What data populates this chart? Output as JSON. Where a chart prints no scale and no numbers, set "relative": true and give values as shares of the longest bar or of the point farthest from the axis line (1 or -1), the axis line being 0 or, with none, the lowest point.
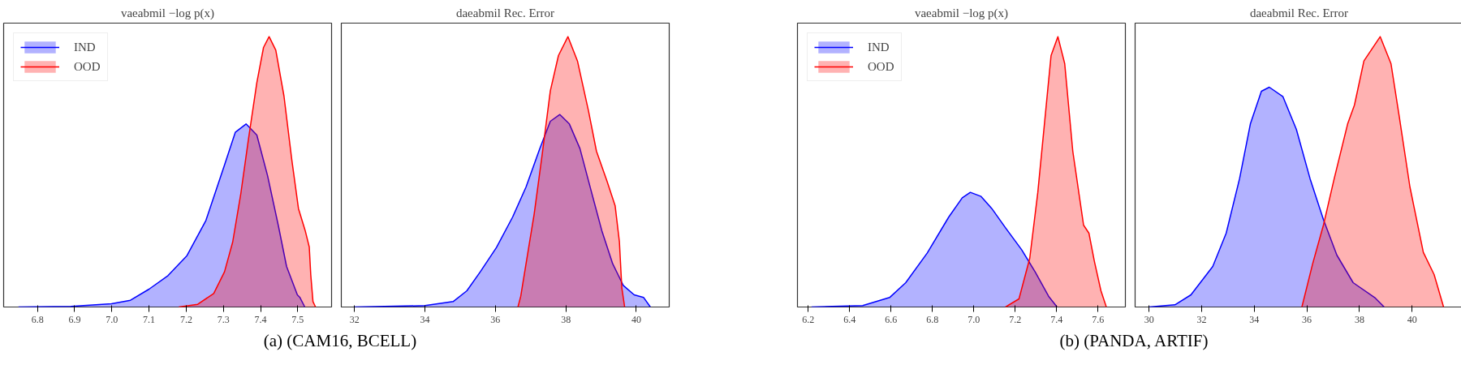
{
  "chart_data": [
    {
      "type": "area",
      "title": "vaeabmil −log p(x)",
      "relative": true,
      "legend": "top left",
      "grid": false,
      "tick_labels": "x",
      "annotations": [
        "(a) (CAM16, BCELL)"
      ],
      "xlim": [
        6.709,
        7.591
      ],
      "xticks": [
        6.8,
        6.9,
        {
          "value": 7.0,
          "label": "7.0"
        },
        7.1,
        7.2,
        7.3,
        7.4,
        7.5
      ],
      "series": [
        {
          "name": "IND",
          "color": "#0000ff",
          "x": [
            6.749,
            6.89,
            6.999,
            7.05,
            7.1,
            7.151,
            7.202,
            7.253,
            7.303,
            7.332,
            7.361,
            7.39,
            7.419,
            7.448,
            7.47,
            7.499,
            7.506,
            7.519
          ],
          "values": [
            0,
            0.002,
            0.012,
            0.025,
            0.066,
            0.116,
            0.19,
            0.32,
            0.525,
            0.646,
            0.677,
            0.636,
            0.485,
            0.3,
            0.15,
            0.045,
            0.035,
            0
          ]
        },
        {
          "name": "OOD",
          "color": "#ff0000",
          "x": [
            7.18,
            7.231,
            7.274,
            7.303,
            7.325,
            7.347,
            7.368,
            7.39,
            7.408,
            7.423,
            7.441,
            7.463,
            7.484,
            7.502,
            7.52,
            7.531,
            7.535,
            7.541,
            7.548
          ],
          "values": [
            0,
            0.01,
            0.05,
            0.13,
            0.24,
            0.42,
            0.626,
            0.83,
            0.96,
            1.0,
            0.95,
            0.78,
            0.545,
            0.364,
            0.283,
            0.222,
            0.12,
            0.02,
            0
          ]
        }
      ]
    },
    {
      "type": "area",
      "title": "daeabmil Rec. Error",
      "relative": true,
      "legend": false,
      "grid": false,
      "tick_labels": "x",
      "xlim": [
        31.625,
        40.935
      ],
      "xticks": [
        32,
        34,
        36,
        38,
        40
      ],
      "series": [
        {
          "color": "#0000ff",
          "x": [
            32,
            34,
            34.8,
            35.19,
            35.57,
            36.03,
            36.49,
            36.87,
            37.26,
            37.56,
            37.83,
            38.1,
            38.4,
            38.71,
            39.02,
            39.33,
            39.63,
            39.94,
            40.21,
            40.4
          ],
          "values": [
            0,
            0.005,
            0.02,
            0.06,
            0.13,
            0.22,
            0.333,
            0.444,
            0.586,
            0.687,
            0.712,
            0.677,
            0.586,
            0.434,
            0.283,
            0.16,
            0.08,
            0.045,
            0.035,
            0
          ]
        },
        {
          "color": "#ff0000",
          "x": [
            36.64,
            36.72,
            36.87,
            37.1,
            37.33,
            37.56,
            37.79,
            38.06,
            38.33,
            38.64,
            38.87,
            39.17,
            39.4,
            39.52,
            39.59,
            39.67
          ],
          "values": [
            0,
            0.04,
            0.16,
            0.343,
            0.566,
            0.8,
            0.93,
            1.0,
            0.91,
            0.727,
            0.576,
            0.465,
            0.374,
            0.242,
            0.07,
            0
          ]
        }
      ]
    },
    {
      "type": "area",
      "title": "vaeabmil −log p(x)",
      "relative": true,
      "legend": "top left",
      "grid": false,
      "tick_labels": "x",
      "annotations": [
        "(b) (PANDA, ARTIF)"
      ],
      "xlim": [
        6.148,
        7.732
      ],
      "xticks": [
        6.2,
        6.4,
        6.6,
        6.8,
        {
          "value": 7.0,
          "label": "7.0"
        },
        7.2,
        7.4,
        7.6
      ],
      "series": [
        {
          "name": "IND",
          "color": "#0000ff",
          "x": [
            6.216,
            6.463,
            6.593,
            6.671,
            6.775,
            6.879,
            6.944,
            6.983,
            7.035,
            7.087,
            7.153,
            7.231,
            7.296,
            7.361,
            7.402
          ],
          "values": [
            0,
            0.005,
            0.035,
            0.09,
            0.2,
            0.333,
            0.404,
            0.424,
            0.409,
            0.364,
            0.293,
            0.212,
            0.13,
            0.04,
            0
          ]
        },
        {
          "name": "OOD",
          "color": "#ff0000",
          "x": [
            7.153,
            7.218,
            7.27,
            7.309,
            7.341,
            7.373,
            7.406,
            7.439,
            7.478,
            7.53,
            7.556,
            7.582,
            7.614,
            7.64
          ],
          "values": [
            0,
            0.03,
            0.18,
            0.424,
            0.677,
            0.93,
            1.0,
            0.9,
            0.576,
            0.303,
            0.273,
            0.17,
            0.06,
            0
          ]
        }
      ]
    },
    {
      "type": "area",
      "title": "daeabmil Rec. Error",
      "relative": true,
      "legend": false,
      "grid": false,
      "tick_labels": "x",
      "xlim": [
        29.466,
        41.94
      ],
      "xticks": [
        30,
        32,
        34,
        36,
        38,
        40
      ],
      "series": [
        {
          "color": "#0000ff",
          "x": [
            30,
            30.98,
            31.59,
            32.42,
            32.93,
            33.44,
            33.85,
            34.27,
            34.57,
            35.09,
            35.6,
            36.12,
            36.63,
            37.14,
            37.76,
            38.58,
            38.94
          ],
          "values": [
            0,
            0.008,
            0.045,
            0.15,
            0.273,
            0.475,
            0.677,
            0.798,
            0.813,
            0.778,
            0.657,
            0.475,
            0.323,
            0.192,
            0.09,
            0.035,
            0
          ]
        },
        {
          "color": "#ff0000",
          "x": [
            35.81,
            36.22,
            36.63,
            37.04,
            37.55,
            37.81,
            38.17,
            38.79,
            39.2,
            39.51,
            39.92,
            40.43,
            40.84,
            41.2
          ],
          "values": [
            0,
            0.16,
            0.303,
            0.475,
            0.677,
            0.747,
            0.91,
            1.0,
            0.9,
            0.707,
            0.444,
            0.202,
            0.12,
            0
          ]
        }
      ]
    }
  ]
}
